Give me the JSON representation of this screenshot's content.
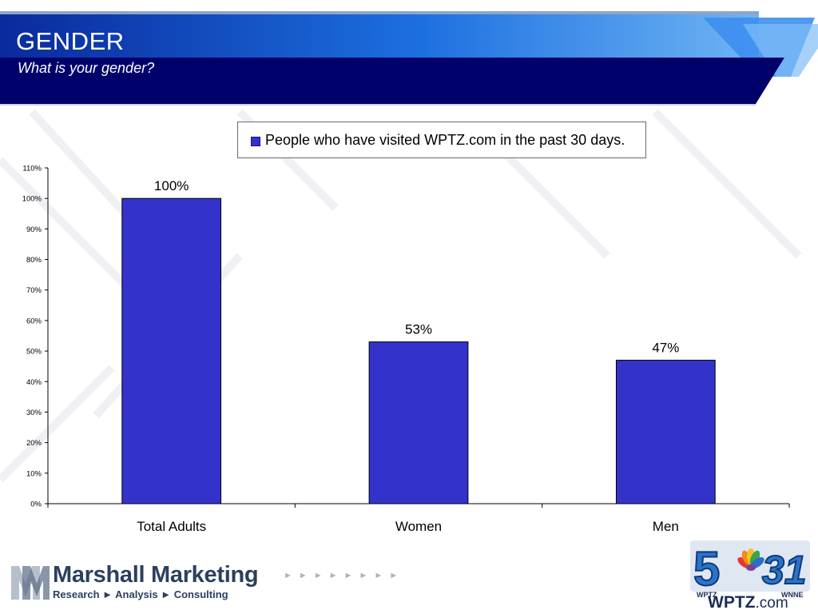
{
  "slide": {
    "title": "GENDER",
    "subtitle": "What is your gender?"
  },
  "legend": {
    "label": "People who have visited WPTZ.com in the past 30 days."
  },
  "chart_data": {
    "type": "bar",
    "categories": [
      "Total Adults",
      "Women",
      "Men"
    ],
    "series": [
      {
        "name": "People who have visited WPTZ.com in the past 30 days.",
        "values": [
          100,
          53,
          47
        ],
        "color": "#3333cc"
      }
    ],
    "data_labels": [
      "100%",
      "53%",
      "47%"
    ],
    "ylim": [
      0,
      110
    ],
    "yticks": [
      0,
      10,
      20,
      30,
      40,
      50,
      60,
      70,
      80,
      90,
      100,
      110
    ],
    "ytick_labels": [
      "0%",
      "10%",
      "20%",
      "30%",
      "40%",
      "50%",
      "60%",
      "70%",
      "80%",
      "90%",
      "100%",
      "110%"
    ],
    "grid": false,
    "legend_position": "top"
  },
  "footer": {
    "brand_name": "Marshall Marketing",
    "brand_tagline": "Research ► Analysis ► Consulting",
    "arrows": "►►►►►►►►",
    "station_left": "WPTZ",
    "station_right": "WNNE",
    "station_site_bold": "WPTZ",
    "station_site_suffix": ".com",
    "logo_numerals_left": "5",
    "logo_numerals_right": "31",
    "logo_letter": "M"
  },
  "colors": {
    "header_dark": "#00006b",
    "header_blue": "#1560d8",
    "bar": "#3333cc",
    "brand": "#2b3f5e"
  }
}
